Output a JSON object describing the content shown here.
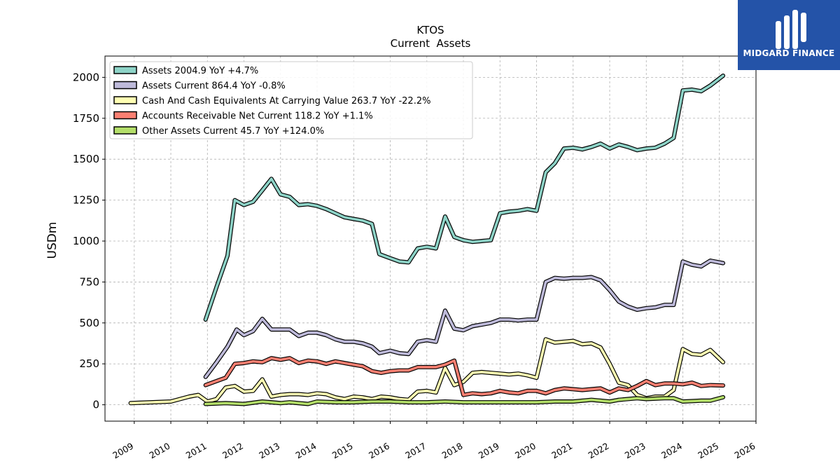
{
  "brand": {
    "name": "MIDGARD FINANCE",
    "bg": "#2453a8"
  },
  "chart_data": {
    "type": "line",
    "title": "KTOS",
    "subtitle": "Current  Assets",
    "ylabel": "USDm",
    "xlabel": "",
    "xlim": [
      2008.2,
      2026.0
    ],
    "ylim": [
      -100,
      2130
    ],
    "yticks": [
      0,
      250,
      500,
      750,
      1000,
      1250,
      1500,
      1750,
      2000
    ],
    "xticks": [
      "2009",
      "2010",
      "2011",
      "2012",
      "2013",
      "2014",
      "2015",
      "2016",
      "2017",
      "2018",
      "2019",
      "2020",
      "2021",
      "2022",
      "2023",
      "2024",
      "2025",
      "2026"
    ],
    "grid": true,
    "legend_position": "top-left",
    "series": [
      {
        "name": "Assets  2004.9 YoY +4.7%",
        "color": "#8dd3c7",
        "points": [
          [
            2010.95,
            520
          ],
          [
            2011.25,
            720
          ],
          [
            2011.55,
            910
          ],
          [
            2011.75,
            1250
          ],
          [
            2012.0,
            1220
          ],
          [
            2012.25,
            1240
          ],
          [
            2012.5,
            1310
          ],
          [
            2012.75,
            1380
          ],
          [
            2013.0,
            1285
          ],
          [
            2013.25,
            1270
          ],
          [
            2013.5,
            1220
          ],
          [
            2013.75,
            1225
          ],
          [
            2014.0,
            1215
          ],
          [
            2014.25,
            1195
          ],
          [
            2014.5,
            1170
          ],
          [
            2014.75,
            1145
          ],
          [
            2015.0,
            1135
          ],
          [
            2015.25,
            1125
          ],
          [
            2015.5,
            1105
          ],
          [
            2015.7,
            920
          ],
          [
            2016.0,
            895
          ],
          [
            2016.25,
            875
          ],
          [
            2016.5,
            870
          ],
          [
            2016.75,
            955
          ],
          [
            2017.0,
            965
          ],
          [
            2017.25,
            955
          ],
          [
            2017.5,
            1150
          ],
          [
            2017.75,
            1025
          ],
          [
            2018.0,
            1005
          ],
          [
            2018.25,
            995
          ],
          [
            2018.5,
            1000
          ],
          [
            2018.75,
            1005
          ],
          [
            2019.0,
            1170
          ],
          [
            2019.25,
            1180
          ],
          [
            2019.5,
            1185
          ],
          [
            2019.75,
            1195
          ],
          [
            2020.0,
            1185
          ],
          [
            2020.25,
            1420
          ],
          [
            2020.5,
            1475
          ],
          [
            2020.75,
            1565
          ],
          [
            2021.0,
            1570
          ],
          [
            2021.25,
            1560
          ],
          [
            2021.5,
            1575
          ],
          [
            2021.75,
            1595
          ],
          [
            2022.0,
            1565
          ],
          [
            2022.25,
            1590
          ],
          [
            2022.5,
            1575
          ],
          [
            2022.75,
            1555
          ],
          [
            2023.0,
            1565
          ],
          [
            2023.25,
            1570
          ],
          [
            2023.5,
            1595
          ],
          [
            2023.75,
            1630
          ],
          [
            2024.0,
            1920
          ],
          [
            2024.25,
            1925
          ],
          [
            2024.5,
            1915
          ],
          [
            2024.75,
            1950
          ],
          [
            2025.1,
            2010
          ]
        ]
      },
      {
        "name": "Assets Current  864.4 YoY -0.8%",
        "color": "#bebada",
        "points": [
          [
            2010.95,
            170
          ],
          [
            2011.25,
            260
          ],
          [
            2011.55,
            355
          ],
          [
            2011.8,
            460
          ],
          [
            2012.0,
            425
          ],
          [
            2012.25,
            450
          ],
          [
            2012.5,
            525
          ],
          [
            2012.75,
            460
          ],
          [
            2013.0,
            460
          ],
          [
            2013.25,
            460
          ],
          [
            2013.5,
            420
          ],
          [
            2013.75,
            440
          ],
          [
            2014.0,
            440
          ],
          [
            2014.25,
            425
          ],
          [
            2014.5,
            400
          ],
          [
            2014.75,
            385
          ],
          [
            2015.0,
            385
          ],
          [
            2015.25,
            375
          ],
          [
            2015.5,
            355
          ],
          [
            2015.7,
            315
          ],
          [
            2016.0,
            330
          ],
          [
            2016.25,
            315
          ],
          [
            2016.5,
            310
          ],
          [
            2016.75,
            385
          ],
          [
            2017.0,
            395
          ],
          [
            2017.25,
            385
          ],
          [
            2017.5,
            575
          ],
          [
            2017.75,
            465
          ],
          [
            2018.0,
            455
          ],
          [
            2018.25,
            480
          ],
          [
            2018.5,
            490
          ],
          [
            2018.75,
            500
          ],
          [
            2019.0,
            520
          ],
          [
            2019.25,
            520
          ],
          [
            2019.5,
            515
          ],
          [
            2019.75,
            520
          ],
          [
            2020.0,
            520
          ],
          [
            2020.25,
            750
          ],
          [
            2020.5,
            775
          ],
          [
            2020.75,
            770
          ],
          [
            2021.0,
            775
          ],
          [
            2021.25,
            775
          ],
          [
            2021.5,
            780
          ],
          [
            2021.75,
            760
          ],
          [
            2022.0,
            700
          ],
          [
            2022.25,
            630
          ],
          [
            2022.5,
            600
          ],
          [
            2022.75,
            580
          ],
          [
            2023.0,
            590
          ],
          [
            2023.25,
            595
          ],
          [
            2023.5,
            610
          ],
          [
            2023.75,
            610
          ],
          [
            2024.0,
            875
          ],
          [
            2024.25,
            855
          ],
          [
            2024.5,
            845
          ],
          [
            2024.75,
            880
          ],
          [
            2025.1,
            865
          ]
        ]
      },
      {
        "name": "Cash And Cash Equivalents At Carrying Value  263.7 YoY -22.2%",
        "color": "#ffffb3",
        "points": [
          [
            2008.9,
            10
          ],
          [
            2010.0,
            20
          ],
          [
            2010.25,
            35
          ],
          [
            2010.5,
            50
          ],
          [
            2010.75,
            60
          ],
          [
            2011.0,
            20
          ],
          [
            2011.25,
            35
          ],
          [
            2011.5,
            105
          ],
          [
            2011.75,
            115
          ],
          [
            2012.0,
            80
          ],
          [
            2012.25,
            85
          ],
          [
            2012.5,
            155
          ],
          [
            2012.75,
            50
          ],
          [
            2013.0,
            60
          ],
          [
            2013.25,
            65
          ],
          [
            2013.5,
            65
          ],
          [
            2013.75,
            60
          ],
          [
            2014.0,
            70
          ],
          [
            2014.25,
            65
          ],
          [
            2014.5,
            45
          ],
          [
            2014.75,
            35
          ],
          [
            2015.0,
            50
          ],
          [
            2015.25,
            45
          ],
          [
            2015.5,
            35
          ],
          [
            2015.75,
            50
          ],
          [
            2016.0,
            45
          ],
          [
            2016.25,
            35
          ],
          [
            2016.5,
            30
          ],
          [
            2016.75,
            80
          ],
          [
            2017.0,
            85
          ],
          [
            2017.25,
            75
          ],
          [
            2017.5,
            225
          ],
          [
            2017.75,
            120
          ],
          [
            2018.0,
            140
          ],
          [
            2018.25,
            195
          ],
          [
            2018.5,
            200
          ],
          [
            2018.75,
            195
          ],
          [
            2019.0,
            190
          ],
          [
            2019.25,
            185
          ],
          [
            2019.5,
            190
          ],
          [
            2019.75,
            180
          ],
          [
            2020.0,
            165
          ],
          [
            2020.25,
            400
          ],
          [
            2020.5,
            380
          ],
          [
            2020.75,
            385
          ],
          [
            2021.0,
            390
          ],
          [
            2021.25,
            370
          ],
          [
            2021.5,
            375
          ],
          [
            2021.75,
            350
          ],
          [
            2022.0,
            250
          ],
          [
            2022.25,
            135
          ],
          [
            2022.5,
            120
          ],
          [
            2022.75,
            60
          ],
          [
            2023.0,
            40
          ],
          [
            2023.25,
            50
          ],
          [
            2023.5,
            50
          ],
          [
            2023.75,
            90
          ],
          [
            2024.0,
            340
          ],
          [
            2024.25,
            310
          ],
          [
            2024.5,
            305
          ],
          [
            2024.75,
            335
          ],
          [
            2025.1,
            260
          ]
        ]
      },
      {
        "name": "Accounts Receivable Net Current  118.2 YoY +1.1%",
        "color": "#fb8072",
        "points": [
          [
            2010.95,
            120
          ],
          [
            2011.25,
            145
          ],
          [
            2011.5,
            165
          ],
          [
            2011.75,
            250
          ],
          [
            2012.0,
            255
          ],
          [
            2012.25,
            265
          ],
          [
            2012.5,
            260
          ],
          [
            2012.75,
            285
          ],
          [
            2013.0,
            275
          ],
          [
            2013.25,
            285
          ],
          [
            2013.5,
            255
          ],
          [
            2013.75,
            270
          ],
          [
            2014.0,
            265
          ],
          [
            2014.25,
            250
          ],
          [
            2014.5,
            265
          ],
          [
            2014.75,
            255
          ],
          [
            2015.0,
            245
          ],
          [
            2015.25,
            235
          ],
          [
            2015.5,
            205
          ],
          [
            2015.75,
            195
          ],
          [
            2016.0,
            205
          ],
          [
            2016.25,
            210
          ],
          [
            2016.5,
            210
          ],
          [
            2016.75,
            230
          ],
          [
            2017.0,
            230
          ],
          [
            2017.25,
            230
          ],
          [
            2017.5,
            245
          ],
          [
            2017.75,
            270
          ],
          [
            2018.0,
            60
          ],
          [
            2018.25,
            70
          ],
          [
            2018.5,
            65
          ],
          [
            2018.75,
            70
          ],
          [
            2019.0,
            85
          ],
          [
            2019.25,
            75
          ],
          [
            2019.5,
            70
          ],
          [
            2019.75,
            85
          ],
          [
            2020.0,
            85
          ],
          [
            2020.25,
            70
          ],
          [
            2020.5,
            90
          ],
          [
            2020.75,
            100
          ],
          [
            2021.0,
            95
          ],
          [
            2021.25,
            90
          ],
          [
            2021.5,
            95
          ],
          [
            2021.75,
            100
          ],
          [
            2022.0,
            75
          ],
          [
            2022.25,
            100
          ],
          [
            2022.5,
            90
          ],
          [
            2022.75,
            115
          ],
          [
            2023.0,
            145
          ],
          [
            2023.25,
            120
          ],
          [
            2023.5,
            130
          ],
          [
            2023.75,
            130
          ],
          [
            2024.0,
            125
          ],
          [
            2024.25,
            135
          ],
          [
            2024.5,
            115
          ],
          [
            2024.75,
            120
          ],
          [
            2025.1,
            118
          ]
        ]
      },
      {
        "name": "Other Assets Current  45.7 YoY +124.0%",
        "color": "#b3de69",
        "points": [
          [
            2010.95,
            5
          ],
          [
            2011.5,
            10
          ],
          [
            2012.0,
            5
          ],
          [
            2012.5,
            20
          ],
          [
            2013.0,
            10
          ],
          [
            2013.25,
            15
          ],
          [
            2013.75,
            5
          ],
          [
            2014.0,
            20
          ],
          [
            2014.5,
            15
          ],
          [
            2015.0,
            15
          ],
          [
            2015.5,
            20
          ],
          [
            2016.0,
            20
          ],
          [
            2016.5,
            15
          ],
          [
            2017.0,
            15
          ],
          [
            2017.5,
            20
          ],
          [
            2018.0,
            15
          ],
          [
            2018.5,
            15
          ],
          [
            2019.0,
            15
          ],
          [
            2019.5,
            15
          ],
          [
            2020.0,
            15
          ],
          [
            2020.5,
            20
          ],
          [
            2021.0,
            20
          ],
          [
            2021.5,
            30
          ],
          [
            2022.0,
            20
          ],
          [
            2022.25,
            30
          ],
          [
            2022.75,
            40
          ],
          [
            2023.0,
            35
          ],
          [
            2023.5,
            40
          ],
          [
            2023.75,
            40
          ],
          [
            2024.0,
            20
          ],
          [
            2024.5,
            25
          ],
          [
            2024.75,
            25
          ],
          [
            2025.1,
            46
          ]
        ]
      }
    ]
  }
}
